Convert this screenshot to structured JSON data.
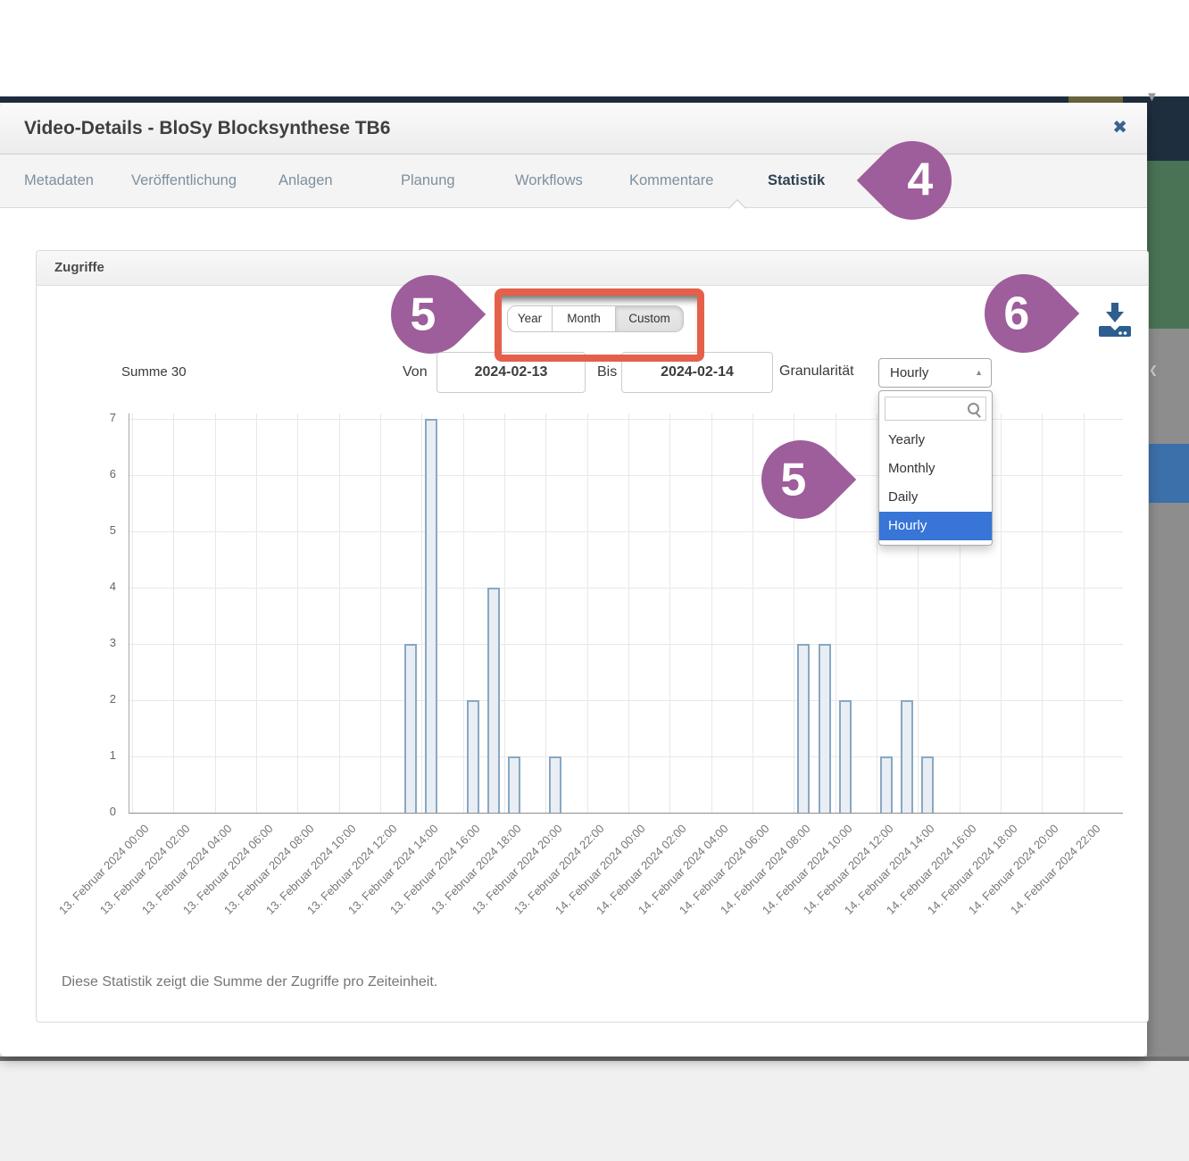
{
  "modal": {
    "title": "Video-Details - BloSy Blocksynthese TB6",
    "close_glyph": "✖"
  },
  "tabs": [
    {
      "label": "Metadaten",
      "active": false
    },
    {
      "label": "Veröffentlichung",
      "active": false
    },
    {
      "label": "Anlagen",
      "active": false
    },
    {
      "label": "Planung",
      "active": false
    },
    {
      "label": "Workflows",
      "active": false
    },
    {
      "label": "Kommentare",
      "active": false
    },
    {
      "label": "Statistik",
      "active": true
    }
  ],
  "panel": {
    "title": "Zugriffe",
    "footer_note": "Diese Statistik zeigt die Summe der Zugriffe pro Zeiteinheit."
  },
  "range_buttons": [
    {
      "label": "Year",
      "active": false
    },
    {
      "label": "Month",
      "active": false
    },
    {
      "label": "Custom",
      "active": true
    }
  ],
  "controls": {
    "summe_label": "Summe 30",
    "von_label": "Von",
    "von_value": "2024-02-13",
    "bis_label": "Bis",
    "bis_value": "2024-02-14",
    "granularity_label": "Granularität",
    "granularity_value": "Hourly",
    "select_caret": "▲"
  },
  "granularity_dropdown": {
    "search_value": "",
    "options": [
      {
        "label": "Yearly",
        "selected": false
      },
      {
        "label": "Monthly",
        "selected": false
      },
      {
        "label": "Daily",
        "selected": false
      },
      {
        "label": "Hourly",
        "selected": true
      }
    ]
  },
  "annotations": [
    {
      "number": "4",
      "direction": "left",
      "points_at": "statistik-tab"
    },
    {
      "number": "5",
      "direction": "right",
      "points_at": "range-button-group"
    },
    {
      "number": "5",
      "direction": "right",
      "points_at": "granularity-dropdown"
    },
    {
      "number": "6",
      "direction": "right",
      "points_at": "download-icon"
    }
  ],
  "icons": {
    "download": "download-tray-arrow",
    "search": "magnifier",
    "close": "x-cross"
  },
  "colors": {
    "marker_purple": "#9e5d9b",
    "highlight_red": "#e5604b",
    "selected_blue": "#3875d7",
    "bar_fill": "#e9eef4",
    "bar_border": "#88a8c3",
    "icon_blue": "#2d5e8e",
    "active_tab": "#2f4254"
  },
  "chart_data": {
    "type": "bar",
    "title": "Zugriffe",
    "total_label": "Summe 30",
    "total": 30,
    "granularity": "Hourly",
    "ylim": [
      0,
      7
    ],
    "yticks": [
      0,
      1,
      2,
      3,
      4,
      5,
      6,
      7
    ],
    "grid": true,
    "xticklabels": [
      "13. Februar 2024 00:00",
      "13. Februar 2024 02:00",
      "13. Februar 2024 04:00",
      "13. Februar 2024 06:00",
      "13. Februar 2024 08:00",
      "13. Februar 2024 10:00",
      "13. Februar 2024 12:00",
      "13. Februar 2024 14:00",
      "13. Februar 2024 16:00",
      "13. Februar 2024 18:00",
      "13. Februar 2024 20:00",
      "13. Februar 2024 22:00",
      "14. Februar 2024 00:00",
      "14. Februar 2024 02:00",
      "14. Februar 2024 04:00",
      "14. Februar 2024 06:00",
      "14. Februar 2024 08:00",
      "14. Februar 2024 10:00",
      "14. Februar 2024 12:00",
      "14. Februar 2024 14:00",
      "14. Februar 2024 16:00",
      "14. Februar 2024 18:00",
      "14. Februar 2024 20:00",
      "14. Februar 2024 22:00"
    ],
    "values": [
      0,
      0,
      0,
      0,
      0,
      0,
      0,
      0,
      0,
      0,
      0,
      0,
      0,
      3,
      7,
      0,
      2,
      4,
      1,
      0,
      1,
      0,
      0,
      0,
      0,
      0,
      0,
      0,
      0,
      0,
      0,
      0,
      3,
      3,
      2,
      0,
      1,
      2,
      1,
      0,
      0,
      0,
      0,
      0,
      0,
      0,
      0,
      0
    ],
    "points": [
      {
        "time": "13. Februar 2024 13:00",
        "value": 3
      },
      {
        "time": "13. Februar 2024 14:00",
        "value": 7
      },
      {
        "time": "13. Februar 2024 16:00",
        "value": 2
      },
      {
        "time": "13. Februar 2024 17:00",
        "value": 4
      },
      {
        "time": "13. Februar 2024 18:00",
        "value": 1
      },
      {
        "time": "13. Februar 2024 20:00",
        "value": 1
      },
      {
        "time": "14. Februar 2024 08:00",
        "value": 3
      },
      {
        "time": "14. Februar 2024 09:00",
        "value": 3
      },
      {
        "time": "14. Februar 2024 10:00",
        "value": 2
      },
      {
        "time": "14. Februar 2024 12:00",
        "value": 1
      },
      {
        "time": "14. Februar 2024 13:00",
        "value": 2
      },
      {
        "time": "14. Februar 2024 14:00",
        "value": 1
      }
    ]
  }
}
